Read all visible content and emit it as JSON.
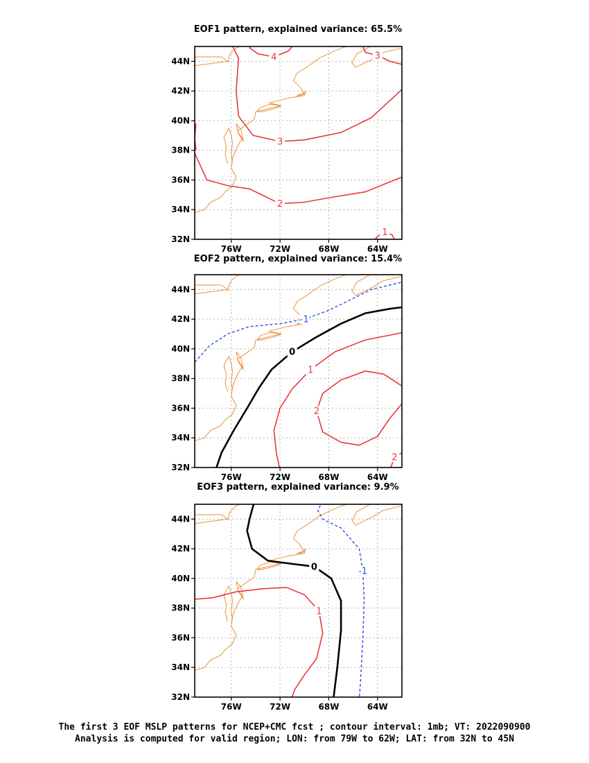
{
  "panels": [
    {
      "title": "EOF1 pattern, explained variance: 65.5%",
      "contours": [
        {
          "sign": "pos",
          "label": "4",
          "pts": [
            [
              -74.2,
              45.2
            ],
            [
              -74.5,
              44.9
            ],
            [
              -73.8,
              44.5
            ],
            [
              -72.5,
              44.3
            ],
            [
              -71.3,
              44.7
            ],
            [
              -70.8,
              45.2
            ]
          ]
        },
        {
          "sign": "pos",
          "label": "3",
          "pts": [
            [
              -65.3,
              45.2
            ],
            [
              -65.0,
              44.6
            ],
            [
              -64.0,
              44.4
            ],
            [
              -63.0,
              44.0
            ],
            [
              -62.0,
              43.8
            ]
          ]
        },
        {
          "sign": "pos",
          "label": "3",
          "pts": [
            [
              -76.0,
              45.2
            ],
            [
              -75.4,
              44.2
            ],
            [
              -75.6,
              42.0
            ],
            [
              -75.4,
              40.3
            ],
            [
              -74.2,
              39.0
            ],
            [
              -72.0,
              38.6
            ],
            [
              -70.0,
              38.7
            ],
            [
              -67.0,
              39.2
            ],
            [
              -64.5,
              40.2
            ],
            [
              -62.0,
              42.1
            ]
          ]
        },
        {
          "sign": "pos",
          "label": "2",
          "pts": [
            [
              -79.0,
              37.8
            ],
            [
              -78.0,
              36.0
            ],
            [
              -76.2,
              35.6
            ],
            [
              -74.5,
              35.4
            ],
            [
              -72.0,
              34.4
            ],
            [
              -70.0,
              34.5
            ],
            [
              -68.0,
              34.8
            ],
            [
              -65.0,
              35.2
            ],
            [
              -62.0,
              36.2
            ]
          ]
        },
        {
          "sign": "pos",
          "label": "1",
          "pts": [
            [
              -64.6,
              31.6
            ],
            [
              -64.0,
              32.2
            ],
            [
              -63.4,
              32.5
            ],
            [
              -62.8,
              32.3
            ],
            [
              -62.5,
              31.8
            ]
          ]
        },
        {
          "sign": "pos",
          "label": "",
          "pts": [
            [
              -78.9,
              39.8
            ],
            [
              -79.0,
              38.8
            ],
            [
              -78.9,
              38.0
            ]
          ]
        }
      ]
    },
    {
      "title": "EOF2 pattern, explained variance: 15.4%",
      "contours": [
        {
          "sign": "zero",
          "label": "0",
          "pts": [
            [
              -77.3,
              31.8
            ],
            [
              -76.8,
              33.0
            ],
            [
              -75.8,
              34.5
            ],
            [
              -74.7,
              36.0
            ],
            [
              -73.7,
              37.4
            ],
            [
              -72.7,
              38.6
            ],
            [
              -71.0,
              39.8
            ],
            [
              -69.0,
              40.8
            ],
            [
              -67.0,
              41.7
            ],
            [
              -65.0,
              42.4
            ],
            [
              -63.0,
              42.7
            ],
            [
              -62.0,
              42.8
            ]
          ]
        },
        {
          "sign": "pos",
          "label": "1",
          "pts": [
            [
              -72.0,
              31.8
            ],
            [
              -72.3,
              33.0
            ],
            [
              -72.5,
              34.5
            ],
            [
              -72.0,
              36.0
            ],
            [
              -71.0,
              37.3
            ],
            [
              -69.5,
              38.6
            ],
            [
              -67.5,
              39.8
            ],
            [
              -65.0,
              40.6
            ],
            [
              -62.5,
              41.0
            ],
            [
              -62.0,
              41.1
            ]
          ]
        },
        {
          "sign": "pos",
          "label": "2",
          "pts": [
            [
              -62.0,
              36.3
            ],
            [
              -63.0,
              35.3
            ],
            [
              -64.0,
              34.1
            ],
            [
              -65.5,
              33.5
            ],
            [
              -67.0,
              33.7
            ],
            [
              -68.5,
              34.4
            ],
            [
              -69.0,
              35.8
            ],
            [
              -68.5,
              37.0
            ],
            [
              -67.0,
              37.9
            ],
            [
              -65.0,
              38.5
            ],
            [
              -63.5,
              38.3
            ],
            [
              -62.0,
              37.5
            ]
          ]
        },
        {
          "sign": "pos",
          "label": "2",
          "pts": [
            [
              -63.0,
              31.8
            ],
            [
              -62.6,
              32.7
            ],
            [
              -62.0,
              33.0
            ]
          ]
        },
        {
          "sign": "neg",
          "label": "-1",
          "pts": [
            [
              -79.0,
              39.1
            ],
            [
              -77.8,
              40.2
            ],
            [
              -76.3,
              41.0
            ],
            [
              -74.5,
              41.5
            ],
            [
              -72.0,
              41.7
            ],
            [
              -70.0,
              42.0
            ],
            [
              -68.0,
              42.6
            ],
            [
              -66.0,
              43.4
            ],
            [
              -64.5,
              44.0
            ],
            [
              -62.0,
              44.5
            ]
          ]
        }
      ]
    },
    {
      "title": "EOF3 pattern, explained variance: 9.9%",
      "contours": [
        {
          "sign": "zero",
          "label": "0",
          "pts": [
            [
              -74.1,
              45.2
            ],
            [
              -74.5,
              44.0
            ],
            [
              -74.7,
              43.2
            ],
            [
              -74.3,
              42.0
            ],
            [
              -73.0,
              41.2
            ],
            [
              -71.2,
              41.0
            ],
            [
              -69.2,
              40.8
            ],
            [
              -67.8,
              40.0
            ],
            [
              -67.0,
              38.5
            ],
            [
              -67.0,
              36.5
            ],
            [
              -67.3,
              34.0
            ],
            [
              -67.6,
              32.0
            ],
            [
              -67.7,
              31.8
            ]
          ]
        },
        {
          "sign": "pos",
          "label": "1",
          "pts": [
            [
              -79.0,
              38.6
            ],
            [
              -77.5,
              38.7
            ],
            [
              -75.6,
              39.1
            ],
            [
              -73.5,
              39.3
            ],
            [
              -71.5,
              39.4
            ],
            [
              -70.0,
              38.9
            ],
            [
              -68.8,
              37.8
            ],
            [
              -68.5,
              36.3
            ],
            [
              -69.0,
              34.6
            ],
            [
              -70.0,
              33.5
            ],
            [
              -70.8,
              32.5
            ],
            [
              -71.1,
              31.8
            ]
          ]
        },
        {
          "sign": "neg",
          "label": "-1",
          "pts": [
            [
              -68.5,
              45.2
            ],
            [
              -68.9,
              44.6
            ],
            [
              -68.5,
              44.0
            ],
            [
              -67.0,
              43.4
            ],
            [
              -65.5,
              42.0
            ],
            [
              -65.2,
              40.5
            ],
            [
              -65.1,
              38.5
            ],
            [
              -65.2,
              36.0
            ],
            [
              -65.4,
              33.0
            ],
            [
              -65.5,
              31.8
            ]
          ]
        }
      ]
    }
  ],
  "axes": {
    "lon_min": -79,
    "lon_max": -62,
    "lat_min": 32,
    "lat_max": 45,
    "lat_ticks": [
      {
        "v": 32,
        "label": "32N"
      },
      {
        "v": 34,
        "label": "34N"
      },
      {
        "v": 36,
        "label": "36N"
      },
      {
        "v": 38,
        "label": "38N"
      },
      {
        "v": 40,
        "label": "40N"
      },
      {
        "v": 42,
        "label": "42N"
      },
      {
        "v": 44,
        "label": "44N"
      }
    ],
    "lon_ticks": [
      {
        "v": -76,
        "label": "76W"
      },
      {
        "v": -72,
        "label": "72W"
      },
      {
        "v": -68,
        "label": "68W"
      },
      {
        "v": -64,
        "label": "64W"
      }
    ]
  },
  "colors": {
    "positive": "#e8383f",
    "negative": "#2b4fe0",
    "zero": "#000000",
    "coastline": "#e8923a",
    "grid": "#9a9a9a"
  },
  "coastline": [
    [
      [
        -79.0,
        33.8
      ],
      [
        -78.2,
        34.0
      ],
      [
        -77.7,
        34.5
      ],
      [
        -76.9,
        34.8
      ],
      [
        -76.5,
        35.2
      ],
      [
        -75.9,
        35.6
      ],
      [
        -75.6,
        36.2
      ],
      [
        -76.0,
        36.8
      ],
      [
        -75.9,
        37.4
      ],
      [
        -75.7,
        37.9
      ],
      [
        -75.4,
        38.4
      ],
      [
        -75.1,
        38.8
      ],
      [
        -75.5,
        39.3
      ],
      [
        -74.8,
        39.7
      ],
      [
        -74.1,
        40.1
      ],
      [
        -74.0,
        40.6
      ],
      [
        -73.0,
        40.8
      ],
      [
        -71.9,
        41.0
      ],
      [
        -72.9,
        41.2
      ],
      [
        -71.4,
        41.5
      ],
      [
        -70.7,
        41.6
      ],
      [
        -70.0,
        41.8
      ],
      [
        -70.4,
        42.3
      ],
      [
        -70.9,
        42.7
      ],
      [
        -70.6,
        43.2
      ],
      [
        -69.8,
        43.6
      ],
      [
        -68.8,
        44.2
      ],
      [
        -67.8,
        44.6
      ],
      [
        -66.9,
        44.9
      ],
      [
        -65.9,
        45.2
      ]
    ],
    [
      [
        -76.3,
        37.1
      ],
      [
        -76.5,
        37.7
      ],
      [
        -76.4,
        38.2
      ],
      [
        -76.6,
        38.9
      ],
      [
        -76.2,
        39.5
      ],
      [
        -76.0,
        39.0
      ],
      [
        -75.9,
        38.5
      ],
      [
        -76.0,
        37.8
      ],
      [
        -75.9,
        37.2
      ]
    ],
    [
      [
        -75.6,
        39.8
      ],
      [
        -75.4,
        39.1
      ],
      [
        -75.0,
        38.6
      ],
      [
        -75.2,
        39.4
      ],
      [
        -75.6,
        39.8
      ]
    ],
    [
      [
        -73.9,
        40.6
      ],
      [
        -73.5,
        40.6
      ],
      [
        -72.5,
        40.8
      ],
      [
        -71.9,
        41.0
      ],
      [
        -72.8,
        41.1
      ],
      [
        -73.6,
        40.9
      ],
      [
        -73.9,
        40.6
      ]
    ],
    [
      [
        -70.7,
        41.6
      ],
      [
        -70.0,
        41.7
      ],
      [
        -69.9,
        42.0
      ],
      [
        -70.2,
        41.8
      ],
      [
        -70.6,
        41.7
      ]
    ],
    [
      [
        -62.0,
        44.9
      ],
      [
        -63.5,
        44.6
      ],
      [
        -64.5,
        44.1
      ],
      [
        -65.8,
        43.6
      ],
      [
        -66.1,
        43.9
      ],
      [
        -65.7,
        44.5
      ],
      [
        -64.6,
        45.0
      ],
      [
        -64.0,
        45.2
      ]
    ],
    [
      [
        -66.0,
        45.2
      ],
      [
        -65.3,
        45.0
      ],
      [
        -64.8,
        45.2
      ]
    ],
    [
      [
        -79.0,
        43.7
      ],
      [
        -77.2,
        43.9
      ],
      [
        -76.3,
        44.0
      ],
      [
        -76.8,
        44.3
      ],
      [
        -79.0,
        44.3
      ]
    ],
    [
      [
        -76.3,
        43.9
      ],
      [
        -76.1,
        44.5
      ],
      [
        -75.6,
        44.9
      ],
      [
        -74.9,
        45.1
      ]
    ]
  ],
  "caption": {
    "line1": "The first 3 EOF MSLP patterns for NCEP+CMC fcst ; contour interval: 1mb; VT: 2022090900",
    "line2": "Analysis is computed for valid region; LON: from 79W to 62W; LAT: from 32N to 45N"
  }
}
